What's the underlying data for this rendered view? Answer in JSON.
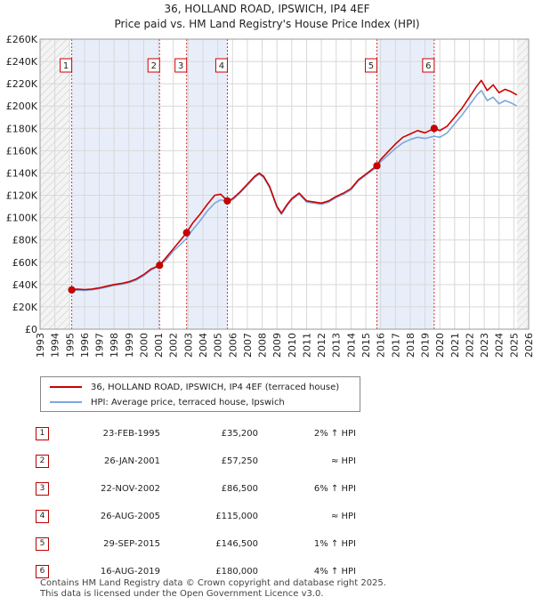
{
  "title_line1": "36, HOLLAND ROAD, IPSWICH, IP4 4EF",
  "title_line2": "Price paid vs. HM Land Registry's House Price Index (HPI)",
  "chart_data": {
    "type": "line",
    "title": "36, HOLLAND ROAD, IPSWICH, IP4 4EF — Price paid vs. HM Land Registry's House Price Index (HPI)",
    "xlim": [
      1993,
      2026
    ],
    "ylim": [
      0,
      260000
    ],
    "x_ticks": [
      "1993",
      "1994",
      "1995",
      "1996",
      "1997",
      "1998",
      "1999",
      "2000",
      "2001",
      "2002",
      "2003",
      "2004",
      "2005",
      "2006",
      "2007",
      "2008",
      "2009",
      "2010",
      "2011",
      "2012",
      "2013",
      "2014",
      "2015",
      "2016",
      "2017",
      "2018",
      "2019",
      "2020",
      "2021",
      "2022",
      "2023",
      "2024",
      "2025",
      "2026"
    ],
    "y_ticks": [
      {
        "value": 0,
        "label": "£0"
      },
      {
        "value": 20000,
        "label": "£20K"
      },
      {
        "value": 40000,
        "label": "£40K"
      },
      {
        "value": 60000,
        "label": "£60K"
      },
      {
        "value": 80000,
        "label": "£80K"
      },
      {
        "value": 100000,
        "label": "£100K"
      },
      {
        "value": 120000,
        "label": "£120K"
      },
      {
        "value": 140000,
        "label": "£140K"
      },
      {
        "value": 160000,
        "label": "£160K"
      },
      {
        "value": 180000,
        "label": "£180K"
      },
      {
        "value": 200000,
        "label": "£200K"
      },
      {
        "value": 220000,
        "label": "£220K"
      },
      {
        "value": 240000,
        "label": "£240K"
      },
      {
        "value": 260000,
        "label": "£260K"
      }
    ],
    "series": [
      {
        "name": "36, HOLLAND ROAD, IPSWICH, IP4 4EF (terraced house)",
        "color": "#cc0000",
        "points": [
          [
            1995.14,
            35200
          ],
          [
            1995.5,
            36000
          ],
          [
            1996,
            35500
          ],
          [
            1996.5,
            36000
          ],
          [
            1997,
            37000
          ],
          [
            1997.5,
            38500
          ],
          [
            1998,
            40000
          ],
          [
            1998.5,
            41000
          ],
          [
            1999,
            42500
          ],
          [
            1999.5,
            45000
          ],
          [
            2000,
            49000
          ],
          [
            2000.5,
            54000
          ],
          [
            2001.07,
            57250
          ],
          [
            2001.5,
            64000
          ],
          [
            2002,
            72000
          ],
          [
            2002.5,
            80000
          ],
          [
            2002.9,
            86500
          ],
          [
            2003.3,
            95000
          ],
          [
            2003.8,
            103000
          ],
          [
            2004.3,
            112000
          ],
          [
            2004.8,
            120000
          ],
          [
            2005.2,
            121000
          ],
          [
            2005.65,
            115000
          ],
          [
            2006,
            117000
          ],
          [
            2006.5,
            123000
          ],
          [
            2007,
            130000
          ],
          [
            2007.5,
            137000
          ],
          [
            2007.8,
            140000
          ],
          [
            2008.1,
            137000
          ],
          [
            2008.5,
            128000
          ],
          [
            2009,
            110000
          ],
          [
            2009.3,
            104000
          ],
          [
            2009.7,
            112000
          ],
          [
            2010,
            117000
          ],
          [
            2010.5,
            122000
          ],
          [
            2011,
            115000
          ],
          [
            2011.5,
            114000
          ],
          [
            2012,
            113000
          ],
          [
            2012.5,
            115000
          ],
          [
            2013,
            119000
          ],
          [
            2013.5,
            122000
          ],
          [
            2014,
            126000
          ],
          [
            2014.5,
            134000
          ],
          [
            2015,
            139000
          ],
          [
            2015.5,
            144000
          ],
          [
            2015.75,
            146500
          ],
          [
            2016,
            152000
          ],
          [
            2016.5,
            159000
          ],
          [
            2017,
            166000
          ],
          [
            2017.5,
            172000
          ],
          [
            2018,
            175000
          ],
          [
            2018.5,
            178000
          ],
          [
            2019,
            176000
          ],
          [
            2019.62,
            180000
          ],
          [
            2020,
            178000
          ],
          [
            2020.5,
            182000
          ],
          [
            2021,
            190000
          ],
          [
            2021.5,
            198000
          ],
          [
            2022,
            208000
          ],
          [
            2022.5,
            218000
          ],
          [
            2022.8,
            223000
          ],
          [
            2023.2,
            214000
          ],
          [
            2023.6,
            219000
          ],
          [
            2024,
            212000
          ],
          [
            2024.4,
            215000
          ],
          [
            2024.8,
            213000
          ],
          [
            2025.2,
            210000
          ]
        ]
      },
      {
        "name": "HPI: Average price, terraced house, Ipswich",
        "color": "#7da7d9",
        "points": [
          [
            1995,
            34500
          ],
          [
            1995.5,
            35000
          ],
          [
            1996,
            34800
          ],
          [
            1996.5,
            35300
          ],
          [
            1997,
            36300
          ],
          [
            1997.5,
            37700
          ],
          [
            1998,
            39200
          ],
          [
            1998.5,
            40200
          ],
          [
            1999,
            41700
          ],
          [
            1999.5,
            44000
          ],
          [
            2000,
            48000
          ],
          [
            2000.5,
            53000
          ],
          [
            2001,
            56500
          ],
          [
            2001.5,
            62000
          ],
          [
            2002,
            70000
          ],
          [
            2002.5,
            76000
          ],
          [
            2002.9,
            81500
          ],
          [
            2003.3,
            89000
          ],
          [
            2003.8,
            97000
          ],
          [
            2004.3,
            106000
          ],
          [
            2004.8,
            113000
          ],
          [
            2005.2,
            116000
          ],
          [
            2005.65,
            114500
          ],
          [
            2006,
            116000
          ],
          [
            2006.5,
            122000
          ],
          [
            2007,
            129000
          ],
          [
            2007.5,
            136000
          ],
          [
            2007.8,
            139000
          ],
          [
            2008.1,
            136000
          ],
          [
            2008.5,
            127000
          ],
          [
            2009,
            109000
          ],
          [
            2009.3,
            103000
          ],
          [
            2009.7,
            111000
          ],
          [
            2010,
            116000
          ],
          [
            2010.5,
            121000
          ],
          [
            2011,
            114000
          ],
          [
            2011.5,
            113000
          ],
          [
            2012,
            112000
          ],
          [
            2012.5,
            114000
          ],
          [
            2013,
            118000
          ],
          [
            2013.5,
            121000
          ],
          [
            2014,
            125000
          ],
          [
            2014.5,
            133000
          ],
          [
            2015,
            138000
          ],
          [
            2015.5,
            143000
          ],
          [
            2015.75,
            145000
          ],
          [
            2016,
            150000
          ],
          [
            2016.5,
            156000
          ],
          [
            2017,
            162000
          ],
          [
            2017.5,
            167000
          ],
          [
            2018,
            170000
          ],
          [
            2018.5,
            172000
          ],
          [
            2019,
            171000
          ],
          [
            2019.62,
            173000
          ],
          [
            2020,
            172000
          ],
          [
            2020.5,
            176000
          ],
          [
            2021,
            184000
          ],
          [
            2021.5,
            192000
          ],
          [
            2022,
            201000
          ],
          [
            2022.5,
            210000
          ],
          [
            2022.8,
            214000
          ],
          [
            2023.2,
            205000
          ],
          [
            2023.6,
            208000
          ],
          [
            2024,
            202000
          ],
          [
            2024.4,
            205000
          ],
          [
            2024.8,
            203000
          ],
          [
            2025.2,
            200000
          ]
        ]
      }
    ],
    "sales": [
      {
        "id": "1",
        "x": 1995.14,
        "price": 35200
      },
      {
        "id": "2",
        "x": 2001.07,
        "price": 57250
      },
      {
        "id": "3",
        "x": 2002.9,
        "price": 86500
      },
      {
        "id": "4",
        "x": 2005.65,
        "price": 115000
      },
      {
        "id": "5",
        "x": 2015.75,
        "price": 146500
      },
      {
        "id": "6",
        "x": 2019.62,
        "price": 180000
      }
    ],
    "shaded_ranges": [
      [
        1995.14,
        2001.07
      ],
      [
        2002.9,
        2005.65
      ],
      [
        2015.75,
        2019.62
      ]
    ],
    "hatched_ranges": [
      [
        1993,
        1995
      ],
      [
        2025.2,
        2026
      ]
    ]
  },
  "legend": {
    "property": "36, HOLLAND ROAD, IPSWICH, IP4 4EF (terraced house)",
    "hpi": "HPI: Average price, terraced house, Ipswich"
  },
  "table": [
    {
      "num": "1",
      "date": "23-FEB-1995",
      "price": "£35,200",
      "hpi": "2% ↑ HPI"
    },
    {
      "num": "2",
      "date": "26-JAN-2001",
      "price": "£57,250",
      "hpi": "≈ HPI"
    },
    {
      "num": "3",
      "date": "22-NOV-2002",
      "price": "£86,500",
      "hpi": "6% ↑ HPI"
    },
    {
      "num": "4",
      "date": "26-AUG-2005",
      "price": "£115,000",
      "hpi": "≈ HPI"
    },
    {
      "num": "5",
      "date": "29-SEP-2015",
      "price": "£146,500",
      "hpi": "1% ↑ HPI"
    },
    {
      "num": "6",
      "date": "16-AUG-2019",
      "price": "£180,000",
      "hpi": "4% ↑ HPI"
    }
  ],
  "footer": {
    "line1": "Contains HM Land Registry data © Crown copyright and database right 2025.",
    "line2": "This data is licensed under the Open Government Licence v3.0."
  }
}
